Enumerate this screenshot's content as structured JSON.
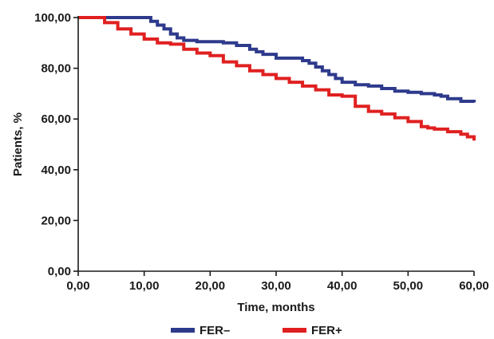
{
  "chart_data": {
    "type": "line",
    "xlabel": "Time, months",
    "ylabel": "Patients, %",
    "xlim": [
      0,
      60
    ],
    "ylim": [
      0,
      100
    ],
    "x_ticks": [
      "0,00",
      "10,00",
      "20,00",
      "30,00",
      "40,00",
      "50,00",
      "60,00"
    ],
    "y_ticks": [
      "0,00",
      "20,00",
      "40,00",
      "60,00",
      "80,00",
      "100,00"
    ],
    "grid": false,
    "legend_position": "bottom",
    "series": [
      {
        "name": "FER–",
        "color": "#2e3a8c",
        "x": [
          0,
          5,
          10,
          11,
          12,
          13,
          14,
          15,
          16,
          18,
          20,
          22,
          24,
          26,
          27,
          28,
          30,
          32,
          34,
          35,
          36,
          37,
          38,
          39,
          40,
          42,
          44,
          46,
          48,
          50,
          52,
          54,
          55,
          56,
          58,
          60
        ],
        "y": [
          100,
          100,
          100,
          98.5,
          97,
          95.5,
          93.5,
          92,
          91,
          90.5,
          90.5,
          90,
          89,
          87.5,
          86.5,
          85.5,
          84,
          84,
          83,
          82,
          80.5,
          79,
          77.5,
          76,
          74.5,
          73.5,
          73,
          72,
          71,
          70.5,
          70,
          69.5,
          69,
          68,
          67,
          66.5
        ]
      },
      {
        "name": "FER+",
        "color": "#e02020",
        "x": [
          0,
          3,
          4,
          6,
          8,
          10,
          12,
          14,
          16,
          18,
          20,
          22,
          24,
          26,
          28,
          30,
          32,
          34,
          36,
          38,
          40,
          42,
          44,
          46,
          48,
          50,
          52,
          53,
          54,
          56,
          58,
          59,
          60
        ],
        "y": [
          100,
          100,
          98,
          95.5,
          93.5,
          91.5,
          90,
          89.5,
          87.5,
          86,
          85,
          82.5,
          81,
          79,
          77.5,
          76,
          74.5,
          73,
          71.5,
          69.5,
          69,
          65,
          63,
          62,
          60.5,
          59,
          57,
          56.5,
          56,
          55,
          54,
          53,
          51.5
        ]
      }
    ]
  }
}
